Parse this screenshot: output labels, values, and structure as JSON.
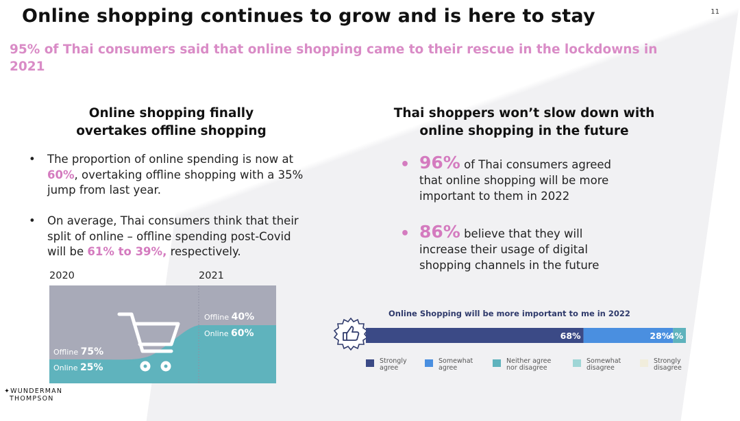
{
  "slide": {
    "title": "Online shopping continues to grow and is here to stay",
    "page_number": "11",
    "subtitle": "95% of Thai consumers said that online shopping came to their rescue in the lockdowns in 2021"
  },
  "left_column": {
    "heading_line1": "Online shopping finally",
    "heading_line2": "overtakes offline shopping",
    "bullet1": {
      "line1": "The proportion of online spending is now at",
      "highlight": "60%",
      "line2_rest": ", overtaking offline shopping with a 35%",
      "line3": "jump from last year."
    },
    "bullet2": {
      "line1": "On average, Thai consumers think that their",
      "line2": "split of online – offline spending post-Covid",
      "line3_start": "will be ",
      "highlight": "61% to 39%,",
      "line3_end": " respectively."
    },
    "chart": {
      "year_left": "2020",
      "year_right": "2021",
      "offline_label": "Offline",
      "online_label": "Online",
      "offline_2020": "75%",
      "online_2020": "25%",
      "offline_2021": "40%",
      "online_2021": "60%",
      "colors": {
        "offline": "#a8aab8",
        "online": "#5fb3bd"
      }
    }
  },
  "right_column": {
    "heading_line1": "Thai shoppers won’t slow down with",
    "heading_line2": "online shopping in the future",
    "stat1": {
      "value": "96%",
      "line1": " of Thai consumers agreed",
      "line2": "that online shopping will be more",
      "line3": "important to them in 2022"
    },
    "stat2": {
      "value": "86%",
      "line1": " believe that they will",
      "line2": "increase their usage of digital",
      "line3": "shopping channels in the future"
    }
  },
  "chart_data": {
    "type": "bar",
    "title": "Online Shopping will be more important to me in 2022",
    "categories": [
      "Online Shopping will be more important to me in 2022"
    ],
    "series": [
      {
        "name": "Strongly agree",
        "values": [
          68
        ],
        "label": "68%",
        "color": "#3b4a86"
      },
      {
        "name": "Somewhat agree",
        "values": [
          28
        ],
        "label": "28%",
        "color": "#4a8fe0"
      },
      {
        "name": "Neither agree nor disagree",
        "values": [
          4
        ],
        "label": "4%",
        "color": "#5fb3bd"
      },
      {
        "name": "Somewhat disagree",
        "values": [
          0
        ],
        "label": "",
        "color": "#9fd6d6"
      },
      {
        "name": "Strongly disagree",
        "values": [
          0
        ],
        "label": "",
        "color": "#f1eddc"
      }
    ],
    "stacked": true,
    "orientation": "horizontal",
    "xlim": [
      0,
      100
    ],
    "legend_position": "bottom",
    "legend": [
      {
        "line1": "Strongly",
        "line2": "agree"
      },
      {
        "line1": "Somewhat",
        "line2": "agree"
      },
      {
        "line1": "Neither agree",
        "line2": "nor disagree"
      },
      {
        "line1": "Somewhat",
        "line2": "disagree"
      },
      {
        "line1": "Strongly",
        "line2": "disagree"
      }
    ]
  },
  "logo": {
    "line1": "WUNDERMAN",
    "line2": "THOMPSON"
  }
}
